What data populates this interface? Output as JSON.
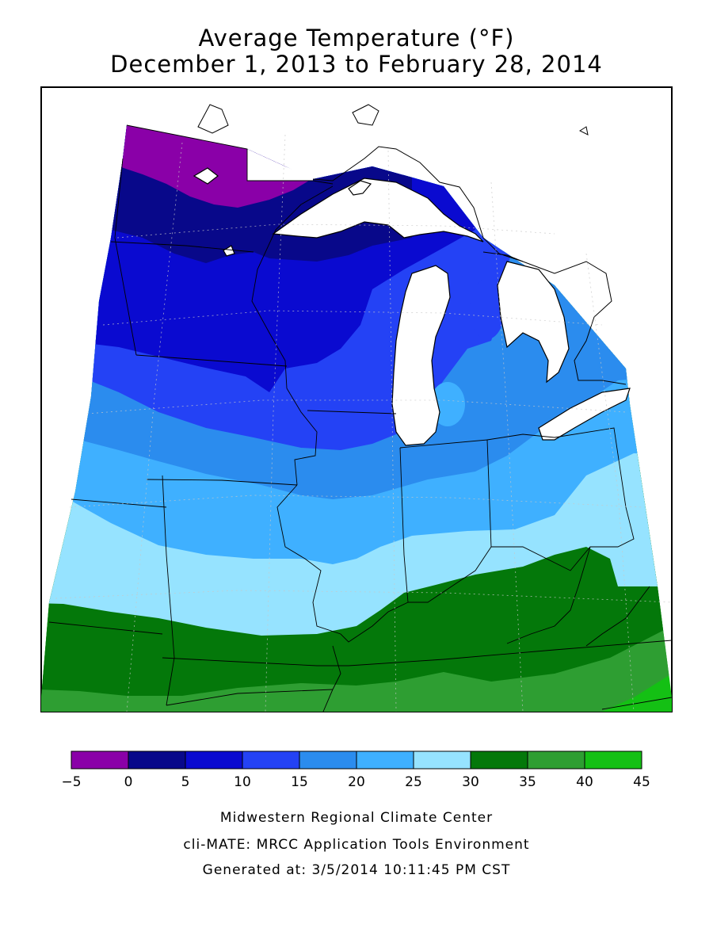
{
  "title": {
    "line1": "Average Temperature (°F)",
    "line2": "December 1, 2013 to February 28, 2014"
  },
  "legend": {
    "ticks": [
      "−5",
      "0",
      "5",
      "10",
      "15",
      "20",
      "25",
      "30",
      "35",
      "40",
      "45"
    ],
    "colors": [
      "#8a00a8",
      "#08088a",
      "#0a0ad0",
      "#2442f5",
      "#2b8cee",
      "#3fb0ff",
      "#96e3ff",
      "#04780a",
      "#2e9e32",
      "#14c014"
    ]
  },
  "credits": {
    "line1": "Midwestern Regional Climate Center",
    "line2": "cli-MATE: MRCC Application Tools Environment",
    "line3": "Generated at: 3/5/2014 10:11:45 PM CST"
  }
}
